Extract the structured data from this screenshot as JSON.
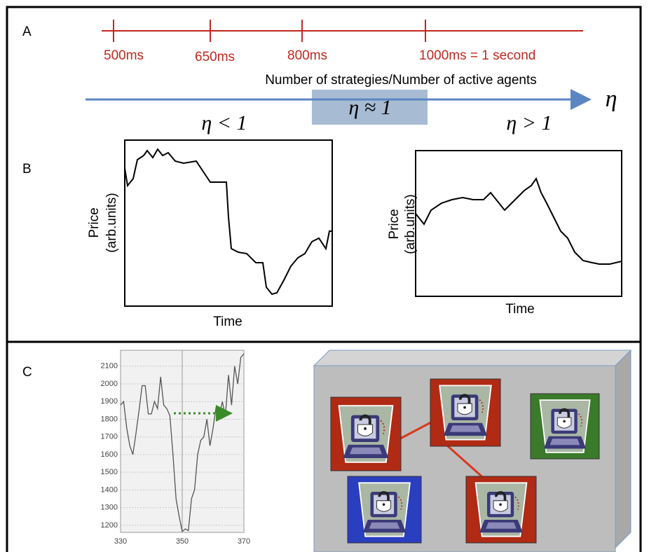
{
  "panel_a": {
    "label": "A",
    "timeline": [
      "500ms",
      "650ms",
      "800ms",
      "1000ms = 1 second"
    ],
    "axis_label": "Number of strategies/Number of active agents",
    "axis_symbol": "η",
    "middle": "η ≈ 1",
    "left": "η < 1",
    "right": "η > 1"
  },
  "panel_b": {
    "label": "B",
    "left": {
      "y_label": "Price",
      "y_unit": "(arb.units)",
      "x_label": "Time"
    },
    "right": {
      "y_label": "Price",
      "y_unit": "(arb.units)",
      "x_label": "Time"
    }
  },
  "panel_c": {
    "label": "C",
    "chart": {
      "type": "line",
      "color": "#555555",
      "x": [
        330,
        331,
        332,
        333,
        334,
        335,
        336,
        337,
        338,
        339,
        340,
        341,
        342,
        343,
        344,
        345,
        346,
        347,
        348,
        349,
        350,
        351,
        352,
        353,
        354,
        355,
        356,
        357,
        358,
        359,
        360,
        361,
        362,
        363,
        364,
        365,
        366,
        367,
        368,
        369,
        370
      ],
      "values": [
        1880,
        1900,
        1750,
        1650,
        1600,
        1720,
        1850,
        1990,
        1990,
        1830,
        1830,
        1900,
        1860,
        2040,
        1880,
        1860,
        1820,
        1600,
        1350,
        1250,
        1165,
        1180,
        1170,
        1350,
        1400,
        1600,
        1680,
        1700,
        1800,
        1650,
        1750,
        1870,
        1810,
        1900,
        1820,
        2050,
        1880,
        2100,
        2000,
        2150,
        2170
      ],
      "xlim": [
        330,
        370
      ],
      "ylim": [
        1160,
        2190
      ],
      "xticks": [
        330,
        350,
        370
      ],
      "yticks": [
        1200,
        1300,
        1400,
        1500,
        1600,
        1700,
        1800,
        1900,
        2000,
        2100
      ],
      "grid": true
    }
  }
}
